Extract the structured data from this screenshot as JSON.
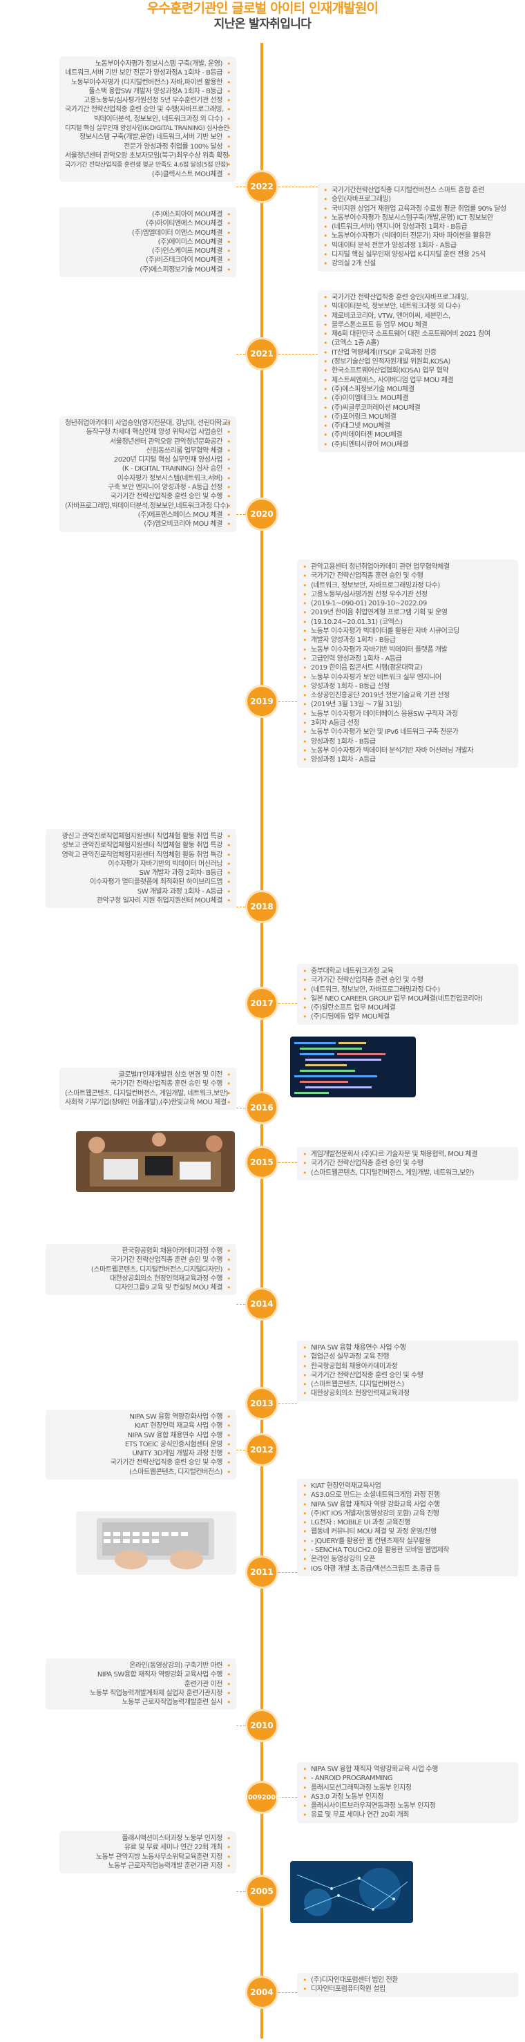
{
  "header": {
    "title": "우수훈련기관인 글로벌 아이티 인재개발원이",
    "subtitle": "지난온 발자취입니다"
  },
  "timeline": [
    {
      "year": "2022",
      "side": "both",
      "left": [
        "노동부이수자평가 정보시스템 구축(개발, 운영)",
        "네트워크,서버 기반 보안 전문가 양성과정A 1회차 - B등급",
        "노동부이수자평가 (디지털컨버전스) 자바,파이썬 활용한",
        "풀스택 융합SW 개발자 양성과정A 1회차 - B등급",
        "고용노동부/심사평가원선정 5년 우수훈련기관 선정",
        "국가기간 전략산업직종 훈련 승인 및 수행(자바프로그래밍,",
        "빅데이터분석, 정보보안, 네트워크과정 외 다수)",
        "디지털 핵심 실무인재 양성사업(K-DIGITAL TRAINING) 심사승인",
        "정보시스템 구축(개발,운영) 네트워크,서버 기반 보안",
        "전문가 양성과정 취업률 100% 달성",
        "서울청년센터 관악오랑 초보자모임(북구)최우수상 위촉 확정",
        "국가기간 전략산업직종 훈련생 평균 만족도 4.6점 달성(5점 만점)",
        "(주)클렉시스트 MOU체결"
      ],
      "right": [
        "국가기간전략산업직종 디지털컨버전스 스마트 혼합 훈련",
        "승인(자바프로그래밍)",
        "국비지원 상업거 재원업 교육과정 수료생 평균 취업률 90% 달성",
        "노동부이수자평가 정보시스템구축(개발,운영) ICT 정보보안",
        "(네트워크,서버) 엔지니어 양성과정 1회차 - B등급",
        "노동부이수자평가 (빅데이터 전문가) 자바 파이썬을 활용한",
        "빅데이터 분석 전문가 양성과정 1회차 - A등급",
        "디지털 핵심 실무인재 양성사업 K-디지털 훈련 전용 25석",
        "강의실 2개 신설"
      ]
    },
    {
      "year": "2021",
      "side": "both",
      "left": [
        "(주)에스피아이 MOU체결",
        "(주)아이티엔에스 MOU체결",
        "(주)엠엘데이터 이엔스 MOU체결",
        "(주)에이미스 MOU체결",
        "(주)인스케이프 MOU체결",
        "(주)비즈테크아이 MOU체결",
        "(주)에스피정보기술 MOU체결"
      ],
      "right": [
        "국가기간 전략산업직종 훈련 승인(자바프로그래밍,",
        "빅데이터분석, 정보보안, 네트워크과정 외 다수)",
        "제로비코코리아, VTW, 엔어이씨, 세븐민스,",
        "블루스톤소프트 등 업무 MOU 체결",
        "제6회 대한민국 소프트웨어 대전 소프트웨어비 2021 참여",
        "(코엑스 1층 A홀)",
        "IT산업 역량체계(ITSQF 교육과정 인증",
        "(정보기술산업 인적자원개발 위원회,KOSA)",
        "한국소프트웨어산업협회(KOSA) 업무 협약",
        "제스트씨엔에스, 사이버디엄 업무 MOU 체결",
        "(주)에스피정보기술 MOU체결",
        "(주)아이엠테크노 MOU체결",
        "(주)씨글루코퍼레이션 MOU체결",
        "(주)포어링크 MOU체결",
        "(주)대그넷 MOU체결",
        "(주)빅데이터젠 MOU체결",
        "(주)티엔티시큐어 MOU체결"
      ]
    },
    {
      "year": "2020",
      "side": "left",
      "left": [
        "청년취업아카데미 사업승인(영지전문대, 강남대, 선린대학교)",
        "동작구청 차세대 핵심인재 양성 위탁사업 사업승인",
        "서울청년센터 관악오랑 관악청년문화공간",
        "신림동쓰리룸 업무협약 체결",
        "2020년 디지털 핵심 실무인재 양성사업",
        "(K - DIGITAL TRAINING) 심사 승인",
        "이수자평가 정보시스템(네트워크,서버)",
        "구축 보안 엔지니어 양성과정 - A등급 선정",
        "국가기간 전략산업직종 훈련 승인 및 수행",
        "(자바프로그래밍,빅데이터분석,정보보안,네트워크과정 다수)",
        "(주)에프엔스페이스 MOU 체결",
        "(주)엠오비코리아 MOU 체결"
      ]
    },
    {
      "year": "2019",
      "side": "right",
      "right": [
        "관악고용센터 청년취업아카데미 관련 업무협약체결",
        "국가기간 전략산업직종 훈련 승인 및 수행",
        "(네트워크, 정보보안, 자바프로그래밍과정 다수)",
        "고용노동부/심사평가원 선정 우수기관 선정",
        "(2019-1~090-01) 2019-10~2022.09",
        "2019년 한이음 취업연계형 프로그램 기획 및 운영",
        "(19.10.24~20.01.31) (코엑스)",
        "노동부 이수자평가 빅데이터를 활용한 자바 시큐어코딩",
        "개발자 양성과정 1회차 - B등급",
        "노동부 이수자평가 자바기반 빅데이터 플랫폼 개발",
        "고급인력 양성과정 1회차 - A등급",
        "2019 한이음 잡콘서트 시행(광운대학교)",
        "노동부 이수자평가 보안 네트워크 실무 엔지니어",
        "양성과정 1회차 - B등급 선정",
        "소상공인진흥공단 2019년 전문기술교육 기관 선정",
        "(2019년 3월 13일 ~ 7월 31일)",
        "노동부 이수자평가 데이터베이스 응용SW 구적자 과정",
        "3회차 A등급 선정",
        "노동부 이수자평가 보안 및 IPv6 네트워크 구축 전문가",
        "양성과정 1회차 - B등급",
        "노동부 이수자평가 빅데이터 분석기반 자바 어션러닝 개발자",
        "양성과정 1회차 - A등급"
      ]
    },
    {
      "year": "2018",
      "side": "left",
      "left": [
        "광신고 관악진로직업체험지원센터 직업체험 활동 취업 특강",
        "성보고 관악진로직업체험지원센터 직업체험 활동 취업 특강",
        "영락고 관악진로직업체험지원센터 직업체험 활동 취업 특강",
        "이수자평가 자바기반의 빅데이터 머신러닝",
        "SW 개발자 과정 2회차- B등급",
        "이수자평가 멀티플랫폼에 최적화된 하이브리드앱",
        "SW 개발자 과정 1회차 - A등급",
        "관악구청 일자리 지원 취업지원센터 MOU체결"
      ]
    },
    {
      "year": "2017",
      "side": "right",
      "right": [
        "중부대학교 네트워크과정 교육",
        "국가기간 전략산업직종 훈련 승인 및 수행",
        "(네트워크, 정보보안, 자바프로그래밍과정 다수)",
        "일본 NEO CAREER GROUP 업무 MOU체결(네트컨업코리아)",
        "(주)알란소프트 업무 MOU체결",
        "(주)디딤에듀 업무 MOU체결"
      ]
    },
    {
      "year": "2016",
      "side": "left",
      "left": [
        "글로벌IT인재개발원 상호 변경 및 이전",
        "국가기간 전략산업직종 훈련 승인 및 수행",
        "(스마트웹콘텐츠, 디지털컨버전스, 게임개발, 네트워크,보안)",
        "사회적 기부기업(장애인 어울개발),(주)한빛교육 MOU 체결"
      ]
    },
    {
      "year": "2015",
      "side": "right",
      "right": [
        "게임개발전문회사 (주)다르 기술자문 및 채용협력, MOU 체결",
        "국가기간 전략산업직종 훈련 승인 및 수행",
        "(스마트웹콘텐츠, 디지털컨버전스, 게임개발, 네트워크,보안)"
      ]
    },
    {
      "year": "2014",
      "side": "left",
      "left": [
        "한국항공협회 채용아카데미과정 수행",
        "국가기간 전략산업직종 훈련 승인 및 수행",
        "(스마트웹콘텐츠, 디지털컨버전스,디지털디자인)",
        "대한상공회의소 현장인력재교육과정 수행",
        "디자인그룹9 교육 및 컨설팅 MOU 체결"
      ]
    },
    {
      "year": "2013",
      "side": "right",
      "right": [
        "NIPA SW 융합 채용연수 사업 수행",
        "협업근성 실무과정 교육 진행",
        "한국항공협회 채용아카데미과정",
        "국가기간 전략산업직종 훈련 승인 및 수행",
        "(스마트웹콘텐츠, 디지털컨버전스)",
        "대한상공회의소 현장인력재교육과정"
      ]
    },
    {
      "year": "2012",
      "side": "left",
      "left": [
        "NIPA SW 융합 역량강화사업 수행",
        "KIAT 현장인력 재교육 사업 수행",
        "NIPA SW 융합 채용연수 사업 수행",
        "ETS TOEIC 공식인증시험센터 운영",
        "UNITY 3D게임 개발자 과정 진행",
        "국가기간 전략산업직종 훈련 승인 및 수행",
        "(스마트웹콘텐츠, 디지털컨버전스)"
      ]
    },
    {
      "year": "2011",
      "side": "right",
      "right": [
        "KIAT 현장인력재교육사업",
        "AS3.0으로 만드는 소셜네트워크게임 과정 진행",
        "NIPA SW 융합 재직자 역량 강화교육 사업 수행",
        "(주)KT IOS 개발자(동영상강의 포함) 교육 진행",
        "LG전자 : MOBILE UI 과정 교육진행",
        "웹동네 커뮤니티 MOU 체결 및 과정 운영/진행",
        "- JQUERY를 활용한 웹 컨텐츠제작 실무활용",
        "- SENCHA TOUCH2.0을 활용한 모바일 웹앱제작",
        "온라인 동영상강의 오픈",
        "IOS 아광 개발 초,중급/액션스크립트 초,중급 등"
      ]
    },
    {
      "year": "2010",
      "side": "left",
      "left": [
        "온라인(동영상강의) 구축기반 마련",
        "NIPA SW융합 재직자 역량강화 교육사업 수행",
        "훈련기관 이전",
        "노동부 직업능력개발계좌제 실업자 훈련기관지정",
        "노동부 근로자직업능력개발훈련 실시"
      ]
    },
    {
      "year": "2009\n2006",
      "side": "right",
      "right": [
        "NIPA SW 융합 재직자 역량강화교육 사업 수행",
        "- ANROID PROGRAMMING",
        "플래시모션그래픽과정 노동부 인지정",
        "AS3.0 과정 노동부 인지정",
        "플래시사이트브라우져연동과정 노동부 인지정",
        "유료 및 무료 세미나 연간 20회 개최"
      ]
    },
    {
      "year": "2005",
      "side": "left",
      "left": [
        "플래시액션미스터과정 노동부 인지정",
        "유료 및 무료 세미나 연간 22회 개최",
        "노동부 관악지방 노동사무소위탁교육훈련 지정",
        "노동부 근로자직업능력개발 훈련기관 지정"
      ]
    },
    {
      "year": "2004",
      "side": "right",
      "right": [
        "(주)디자인대포럼센터 법인 전환",
        "디자인터포럼퓨터학원 설립"
      ]
    }
  ],
  "photo_labels": [
    "coding-screen-photo",
    "team-meeting-photo",
    "laptop-typing-photo",
    "digital-network-photo"
  ],
  "accent_color": "#f39c1f"
}
